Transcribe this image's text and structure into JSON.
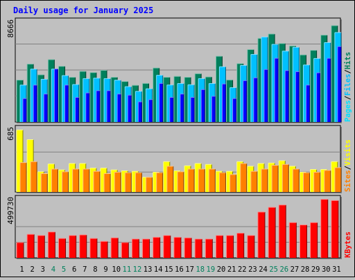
{
  "title": "Daily usage for January 2025",
  "colors": {
    "background": "#c0c0c0",
    "title": "#0000ff",
    "hits": "#00805c",
    "files": "#00c0ff",
    "pages": "#00e0ff",
    "pages_inner": "#0000ff",
    "visits": "#ffff00",
    "sites": "#ff8000",
    "kbytes": "#ff0000",
    "weekend_label": "#00805c",
    "weekday_label": "#000000"
  },
  "chart_data": [
    {
      "type": "bar",
      "title": "Daily usage for January 2025",
      "panel": "top",
      "ymax_label": "8666",
      "ylim": [
        0,
        9300
      ],
      "x": [
        "1",
        "2",
        "3",
        "4",
        "5",
        "6",
        "7",
        "8",
        "9",
        "10",
        "11",
        "12",
        "13",
        "14",
        "15",
        "16",
        "17",
        "18",
        "19",
        "20",
        "21",
        "22",
        "23",
        "24",
        "25",
        "26",
        "27",
        "28",
        "29",
        "30",
        "31"
      ],
      "legend": [
        "Pages",
        "/",
        "Files",
        "/",
        "Hits"
      ],
      "series": [
        {
          "name": "Hits",
          "color": "#00805c",
          "values": [
            3750,
            5180,
            4220,
            5580,
            4980,
            4000,
            4530,
            4420,
            4620,
            4000,
            3620,
            3280,
            3450,
            4830,
            4000,
            4080,
            4000,
            4320,
            4030,
            5880,
            3760,
            5220,
            6480,
            7480,
            7870,
            7020,
            6800,
            6000,
            6410,
            7770,
            8620
          ]
        },
        {
          "name": "Files",
          "color": "#00c0ff",
          "values": [
            3300,
            4730,
            3820,
            4730,
            4150,
            3350,
            3880,
            3920,
            3880,
            3740,
            3160,
            2740,
            2970,
            4180,
            3310,
            3440,
            3330,
            3880,
            3440,
            4940,
            3070,
            5060,
            6040,
            7600,
            6940,
            6340,
            6680,
            5100,
            5680,
            7100,
            8000
          ]
        },
        {
          "name": "Pages",
          "color": "#0000ff",
          "values": [
            2100,
            3300,
            2500,
            4740,
            3300,
            2200,
            2600,
            2800,
            2800,
            2500,
            2400,
            1800,
            2000,
            3450,
            2200,
            2500,
            2200,
            2900,
            2300,
            3400,
            2100,
            3700,
            3950,
            4700,
            5700,
            4600,
            4500,
            3300,
            4400,
            5700,
            6750
          ]
        }
      ]
    },
    {
      "type": "bar",
      "panel": "middle",
      "ymax_label": "685",
      "ylim": [
        0,
        725
      ],
      "x": [
        "1",
        "2",
        "3",
        "4",
        "5",
        "6",
        "7",
        "8",
        "9",
        "10",
        "11",
        "12",
        "13",
        "14",
        "15",
        "16",
        "17",
        "18",
        "19",
        "20",
        "21",
        "22",
        "23",
        "24",
        "25",
        "26",
        "27",
        "28",
        "29",
        "30",
        "31"
      ],
      "legend": [
        "Sites",
        "/",
        "Visits"
      ],
      "series": [
        {
          "name": "Visits",
          "color": "#ffff00",
          "values": [
            675,
            570,
            220,
            305,
            240,
            310,
            310,
            260,
            260,
            240,
            230,
            225,
            160,
            215,
            330,
            230,
            285,
            310,
            300,
            225,
            225,
            330,
            280,
            310,
            315,
            340,
            280,
            215,
            245,
            245,
            330
          ]
        },
        {
          "name": "Sites",
          "color": "#ff8000",
          "values": [
            320,
            330,
            200,
            250,
            220,
            250,
            250,
            225,
            200,
            215,
            210,
            210,
            160,
            210,
            280,
            220,
            250,
            250,
            250,
            210,
            190,
            310,
            225,
            250,
            290,
            300,
            250,
            210,
            215,
            235,
            265
          ]
        }
      ]
    },
    {
      "type": "bar",
      "panel": "bottom",
      "ymax_label": "499730",
      "ylim": [
        0,
        531400
      ],
      "x": [
        "1",
        "2",
        "3",
        "4",
        "5",
        "6",
        "7",
        "8",
        "9",
        "10",
        "11",
        "12",
        "13",
        "14",
        "15",
        "16",
        "17",
        "18",
        "19",
        "20",
        "21",
        "22",
        "23",
        "24",
        "25",
        "26",
        "27",
        "28",
        "29",
        "30",
        "31"
      ],
      "legend": [
        "KBytes"
      ],
      "series": [
        {
          "name": "KBytes",
          "color": "#ff0000",
          "values": [
            130000,
            200000,
            190000,
            220000,
            165000,
            190000,
            195000,
            165000,
            140000,
            170000,
            130000,
            160000,
            160000,
            175000,
            190000,
            175000,
            170000,
            160000,
            160000,
            190000,
            190000,
            210000,
            190000,
            390000,
            430000,
            450000,
            300000,
            280000,
            300000,
            498000,
            488000
          ]
        }
      ]
    }
  ],
  "day_labels": [
    "1",
    "2",
    "3",
    "4",
    "5",
    "6",
    "7",
    "8",
    "9",
    "10",
    "11",
    "12",
    "13",
    "14",
    "15",
    "16",
    "17",
    "18",
    "19",
    "20",
    "21",
    "22",
    "23",
    "24",
    "25",
    "26",
    "27",
    "28",
    "29",
    "30",
    "31"
  ],
  "weekend_days": [
    "4",
    "5",
    "11",
    "12",
    "18",
    "19",
    "25",
    "26"
  ]
}
